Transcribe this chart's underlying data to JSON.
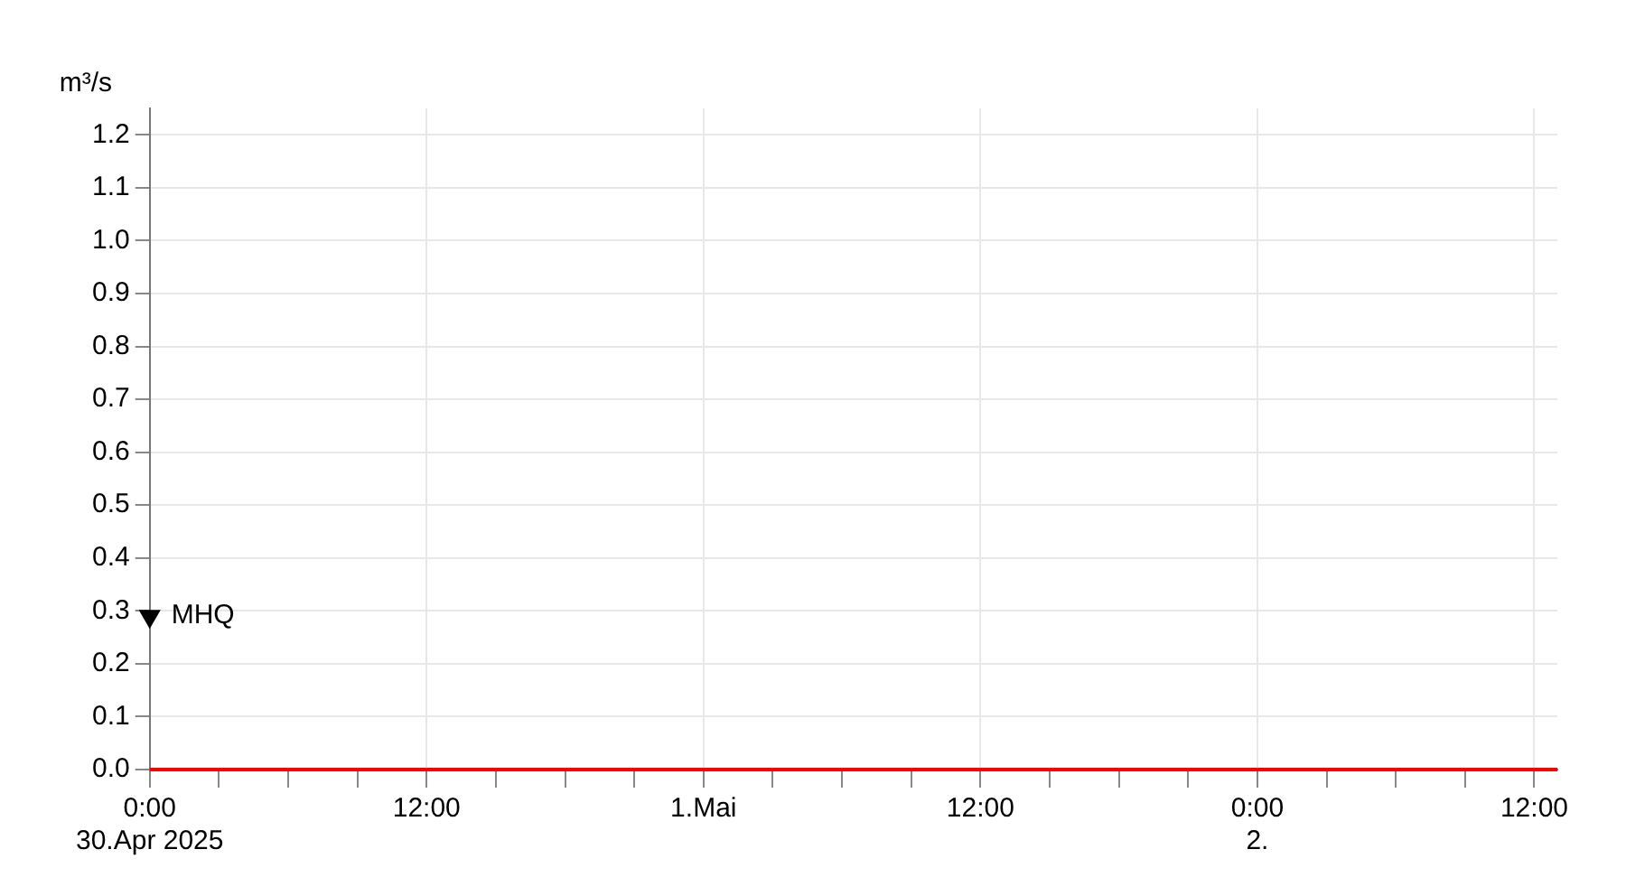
{
  "chart_data": {
    "type": "line",
    "ylabel": "m³/s",
    "x": [
      "2025-04-30T00:00",
      "2025-05-02T13:00"
    ],
    "series": [
      {
        "color": "#ff0000",
        "values": [
          0,
          0
        ]
      },
      {
        "type": "scatter",
        "name": "MHQ",
        "color": "#000000",
        "marker": "triangle",
        "x": [
          "2025-04-30T00:00"
        ],
        "values": [
          0.29
        ]
      }
    ],
    "xlim": [
      "2025-04-30T00:00",
      "2025-05-02T13:00"
    ],
    "xticks": [
      {
        "value": "2025-04-30T00:00",
        "label": "0:00\n30.Apr 2025"
      },
      {
        "value": "2025-04-30T03:00",
        "label": null
      },
      {
        "value": "2025-04-30T06:00",
        "label": null
      },
      {
        "value": "2025-04-30T09:00",
        "label": null
      },
      {
        "value": "2025-04-30T12:00",
        "label": "12:00"
      },
      {
        "value": "2025-04-30T15:00",
        "label": null
      },
      {
        "value": "2025-04-30T18:00",
        "label": null
      },
      {
        "value": "2025-04-30T21:00",
        "label": null
      },
      {
        "value": "2025-05-01T00:00",
        "label": "1.Mai"
      },
      {
        "value": "2025-05-01T03:00",
        "label": null
      },
      {
        "value": "2025-05-01T06:00",
        "label": null
      },
      {
        "value": "2025-05-01T09:00",
        "label": null
      },
      {
        "value": "2025-05-01T12:00",
        "label": "12:00"
      },
      {
        "value": "2025-05-01T15:00",
        "label": null
      },
      {
        "value": "2025-05-01T18:00",
        "label": null
      },
      {
        "value": "2025-05-01T21:00",
        "label": null
      },
      {
        "value": "2025-05-02T00:00",
        "label": "0:00\n2."
      },
      {
        "value": "2025-05-02T03:00",
        "label": null
      },
      {
        "value": "2025-05-02T06:00",
        "label": null
      },
      {
        "value": "2025-05-02T09:00",
        "label": null
      },
      {
        "value": "2025-05-02T12:00",
        "label": "12:00"
      }
    ],
    "ylim": [
      0,
      1.25
    ],
    "yticks": [
      {
        "value": 0,
        "label": "0.0"
      },
      {
        "value": 0.1,
        "label": "0.1"
      },
      {
        "value": 0.2,
        "label": "0.2"
      },
      {
        "value": 0.3,
        "label": "0.3"
      },
      {
        "value": 0.4,
        "label": "0.4"
      },
      {
        "value": 0.5,
        "label": "0.5"
      },
      {
        "value": 0.6,
        "label": "0.6"
      },
      {
        "value": 0.7,
        "label": "0.7"
      },
      {
        "value": 0.8,
        "label": "0.8"
      },
      {
        "value": 0.9,
        "label": "0.9"
      },
      {
        "value": 1.0,
        "label": "1.0"
      },
      {
        "value": 1.1,
        "label": "1.1"
      },
      {
        "value": 1.2,
        "label": "1.2"
      }
    ],
    "grid": true,
    "legend": false,
    "marker": "none",
    "line_style": "solid"
  }
}
